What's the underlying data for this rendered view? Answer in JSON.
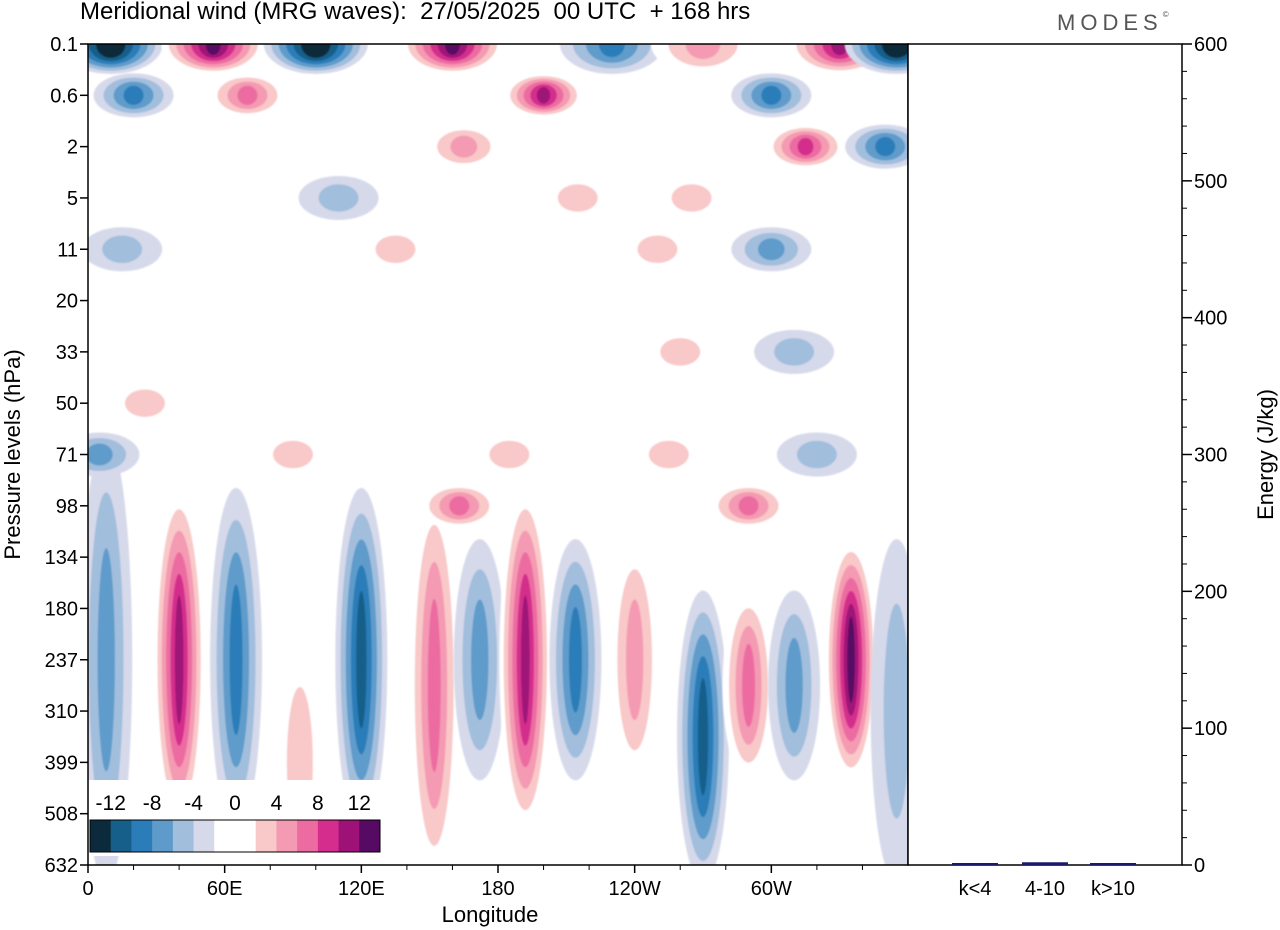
{
  "title": "Meridional wind (MRG waves):  27/05/2025  00 UTC  + 168 hrs",
  "logo": "MODES",
  "logo_mark": "©",
  "chart_data": [
    {
      "type": "heatmap",
      "xlabel": "Longitude",
      "ylabel": "Pressure levels (hPa)",
      "x_ticks": [
        "0",
        "60E",
        "120E",
        "180",
        "120W",
        "60W"
      ],
      "y_ticks": [
        "0.1",
        "0.6",
        "2",
        "5",
        "11",
        "20",
        "33",
        "50",
        "71",
        "98",
        "134",
        "180",
        "237",
        "310",
        "399",
        "508",
        "632"
      ],
      "colorbar": {
        "labels": [
          "-12",
          "-8",
          "-4",
          "0",
          "4",
          "8",
          "12"
        ],
        "colors": [
          "#0b2a3b",
          "#155f8a",
          "#2a7db8",
          "#5e9bcb",
          "#a2bedd",
          "#d6d9ea",
          "#ffffff",
          "#ffffff",
          "#f9c8c8",
          "#f49ab2",
          "#ec6ca1",
          "#d42d8d",
          "#9e1277",
          "#560a64"
        ]
      },
      "features": [
        {
          "type": "band",
          "lon": 8,
          "p_top": 71,
          "p_bot": 632,
          "value": -5
        },
        {
          "type": "band",
          "lon": 40,
          "p_top": 98,
          "p_bot": 508,
          "value": 11
        },
        {
          "type": "band",
          "lon": 65,
          "p_top": 98,
          "p_bot": 508,
          "value": -8
        },
        {
          "type": "band",
          "lon": 93,
          "p_top": 237,
          "p_bot": 632,
          "value": 3
        },
        {
          "type": "band",
          "lon": 120,
          "p_top": 98,
          "p_bot": 508,
          "value": -9
        },
        {
          "type": "band",
          "lon": 152,
          "p_top": 98,
          "p_bot": 632,
          "value": 7
        },
        {
          "type": "band",
          "lon": 172,
          "p_top": 134,
          "p_bot": 399,
          "value": -6
        },
        {
          "type": "band",
          "lon": 192,
          "p_top": 98,
          "p_bot": 508,
          "value": 11
        },
        {
          "type": "band",
          "lon": 214,
          "p_top": 134,
          "p_bot": 399,
          "value": -7
        },
        {
          "type": "band",
          "lon": 240,
          "p_top": 134,
          "p_bot": 399,
          "value": 6
        },
        {
          "type": "band",
          "lon": 270,
          "p_top": 180,
          "p_bot": 632,
          "value": -9
        },
        {
          "type": "band",
          "lon": 290,
          "p_top": 180,
          "p_bot": 399,
          "value": 7
        },
        {
          "type": "band",
          "lon": 310,
          "p_top": 180,
          "p_bot": 399,
          "value": -5
        },
        {
          "type": "band",
          "lon": 335,
          "p_top": 134,
          "p_bot": 399,
          "value": 13
        },
        {
          "type": "band",
          "lon": 355,
          "p_top": 134,
          "p_bot": 632,
          "value": -4
        },
        {
          "type": "blob",
          "lon": 163,
          "p": 98,
          "value": 7
        },
        {
          "type": "blob",
          "lon": 290,
          "p": 98,
          "value": 7
        },
        {
          "type": "blob",
          "lon": 255,
          "p": 71,
          "value": 4
        },
        {
          "type": "blob",
          "lon": 185,
          "p": 71,
          "value": 3
        },
        {
          "type": "blob",
          "lon": 320,
          "p": 71,
          "value": -4
        },
        {
          "type": "blob",
          "lon": 5,
          "p": 71,
          "value": -6
        },
        {
          "type": "blob",
          "lon": 90,
          "p": 71,
          "value": 3
        },
        {
          "type": "blob",
          "lon": 25,
          "p": 50,
          "value": 3
        },
        {
          "type": "blob",
          "lon": 260,
          "p": 33,
          "value": 3
        },
        {
          "type": "blob",
          "lon": 310,
          "p": 33,
          "value": -3
        },
        {
          "type": "blob",
          "lon": 135,
          "p": 11,
          "value": 3
        },
        {
          "type": "blob",
          "lon": 250,
          "p": 11,
          "value": 3
        },
        {
          "type": "blob",
          "lon": 300,
          "p": 11,
          "value": -5
        },
        {
          "type": "blob",
          "lon": 15,
          "p": 11,
          "value": -3
        },
        {
          "type": "blob",
          "lon": 110,
          "p": 5,
          "value": -3
        },
        {
          "type": "blob",
          "lon": 215,
          "p": 5,
          "value": 4
        },
        {
          "type": "blob",
          "lon": 265,
          "p": 5,
          "value": 4
        },
        {
          "type": "blob",
          "lon": 20,
          "p": 0.6,
          "value": -7
        },
        {
          "type": "blob",
          "lon": 200,
          "p": 0.6,
          "value": 11
        },
        {
          "type": "blob",
          "lon": 165,
          "p": 2,
          "value": 5
        },
        {
          "type": "blob",
          "lon": 300,
          "p": 0.6,
          "value": -8
        },
        {
          "type": "blob",
          "lon": 315,
          "p": 2,
          "value": 9
        },
        {
          "type": "blob",
          "lon": 350,
          "p": 2,
          "value": -7
        },
        {
          "type": "blob",
          "lon": 70,
          "p": 0.6,
          "value": 7
        },
        {
          "type": "blob",
          "lon": 10,
          "p": 0.1,
          "value": -14
        },
        {
          "type": "blob",
          "lon": 55,
          "p": 0.1,
          "value": 14
        },
        {
          "type": "blob",
          "lon": 100,
          "p": 0.1,
          "value": -13
        },
        {
          "type": "blob",
          "lon": 160,
          "p": 0.1,
          "value": 14
        },
        {
          "type": "blob",
          "lon": 230,
          "p": 0.1,
          "value": -8
        },
        {
          "type": "blob",
          "lon": 270,
          "p": 0.1,
          "value": 6
        },
        {
          "type": "blob",
          "lon": 330,
          "p": 0.1,
          "value": 11
        },
        {
          "type": "blob",
          "lon": 355,
          "p": 0.1,
          "value": -14
        }
      ]
    },
    {
      "type": "bar",
      "categories": [
        "k<4",
        "4-10",
        "k>10"
      ],
      "values": [
        0,
        2,
        0
      ],
      "ylabel": "Energy (J/kg)",
      "ylim": [
        0,
        600
      ],
      "y_ticks": [
        "0",
        "100",
        "200",
        "300",
        "400",
        "500",
        "600"
      ],
      "bar_color": "#1b1b6e"
    }
  ]
}
